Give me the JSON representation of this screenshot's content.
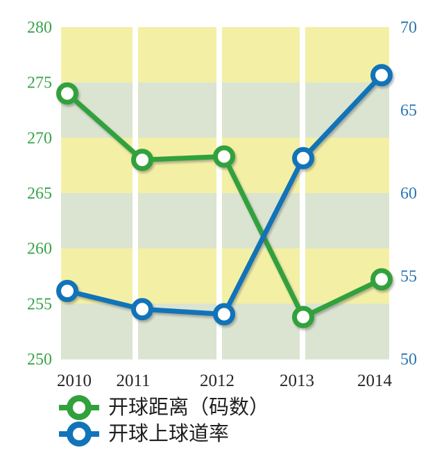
{
  "chart_data": {
    "type": "line",
    "title": "",
    "categories": [
      "2010",
      "2011",
      "2012",
      "2013",
      "2014"
    ],
    "series": [
      {
        "name": "开球距离（码数）",
        "axis": "left",
        "color": "#31a13c",
        "values": [
          274,
          268,
          268.3,
          253.8,
          257.2
        ]
      },
      {
        "name": "开球上球道率",
        "axis": "right",
        "color": "#1173b8",
        "values": [
          54.1,
          53,
          52.7,
          62.1,
          67.1
        ]
      }
    ],
    "left_axis": {
      "range": [
        250,
        280
      ],
      "ticks": [
        280,
        275,
        270,
        265,
        260,
        255,
        250
      ],
      "tick_color": "#3ba24b"
    },
    "right_axis": {
      "range": [
        50,
        70
      ],
      "ticks": [
        70,
        65,
        60,
        55,
        50
      ],
      "tick_color": "#2b77b4"
    },
    "x_axis": {
      "tick_color": "#262626"
    },
    "plot_bands": {
      "direction": "horizontal",
      "step": 5,
      "colors": [
        "#f3f0a5",
        "#dae4d0"
      ]
    },
    "vertical_gridlines": {
      "color": "#ffffff"
    },
    "marker_fill": "#ffffff",
    "legend_position": "bottom-left",
    "grid": "alternating horizontal color bands with white vertical gridlines"
  }
}
